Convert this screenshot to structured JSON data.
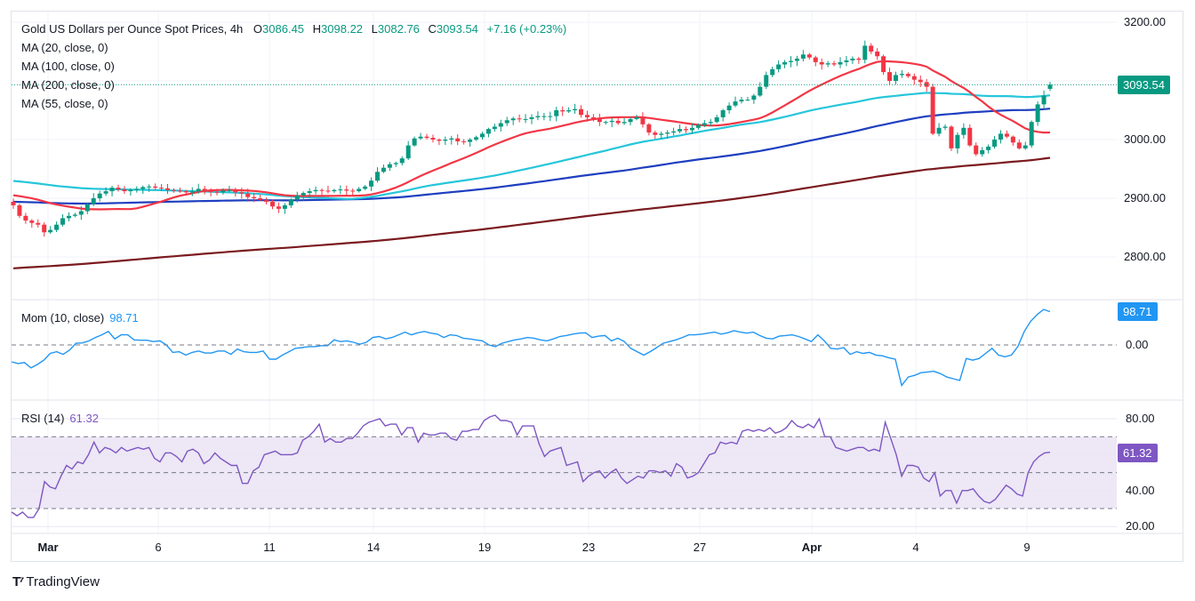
{
  "header": {
    "symbol_title": "Gold US Dollars per Ounce Spot Prices, 4h",
    "open_label": "O",
    "open": "3086.45",
    "high_label": "H",
    "high": "3098.22",
    "low_label": "L",
    "low": "3082.76",
    "close_label": "C",
    "close": "3093.54",
    "change": "+7.16 (+0.23%)"
  },
  "indicators": {
    "ma20": "MA (20, close, 0)",
    "ma100": "MA (100, close, 0)",
    "ma200": "MA (200, close, 0)",
    "ma55": "MA (55, close, 0)",
    "mom_label": "Mom (10, close)",
    "mom_value": "98.71",
    "rsi_label": "RSI (14)",
    "rsi_value": "61.32"
  },
  "price_axis": [
    "3200.00",
    "3000.00",
    "2900.00",
    "2800.00"
  ],
  "price_badge": "3093.54",
  "mom_axis": [
    "0.00"
  ],
  "mom_badge": "98.71",
  "rsi_axis": [
    "80.00",
    "40.00",
    "20.00"
  ],
  "rsi_badge": "61.32",
  "date_axis": [
    {
      "label": "Mar",
      "bold": true
    },
    {
      "label": "6",
      "bold": false
    },
    {
      "label": "11",
      "bold": false
    },
    {
      "label": "14",
      "bold": false
    },
    {
      "label": "19",
      "bold": false
    },
    {
      "label": "23",
      "bold": false
    },
    {
      "label": "27",
      "bold": false
    },
    {
      "label": "Apr",
      "bold": true
    },
    {
      "label": "4",
      "bold": false
    },
    {
      "label": "9",
      "bold": false
    }
  ],
  "brand": "TradingView",
  "colors": {
    "up": "#089981",
    "down": "#f23645",
    "ma20": "#f23645",
    "ma55": "#26c6da",
    "ma100": "#1e3fbf",
    "ma200": "#7b1a1f",
    "mom": "#2196f3",
    "rsi": "#7e57c2",
    "rsi_band": "#ede7f6"
  },
  "chart_data": [
    {
      "type": "candlestick",
      "title": "Gold US Dollars per Ounce Spot Prices, 4h",
      "ylim": [
        2760,
        3220
      ],
      "yticks": [
        2800,
        2900,
        3000,
        3200
      ],
      "x_ticks": [
        "Mar",
        "6",
        "11",
        "14",
        "19",
        "23",
        "27",
        "Apr",
        "4",
        "9"
      ],
      "last": {
        "open": 3086.45,
        "high": 3098.22,
        "low": 3082.76,
        "close": 3093.54
      },
      "close_series": [
        2888,
        2870,
        2862,
        2858,
        2855,
        2842,
        2846,
        2855,
        2866,
        2870,
        2872,
        2878,
        2890,
        2900,
        2908,
        2912,
        2918,
        2915,
        2912,
        2914,
        2916,
        2919,
        2920,
        2918,
        2917,
        2914,
        2913,
        2912,
        2910,
        2912,
        2916,
        2912,
        2911,
        2910,
        2913,
        2914,
        2910,
        2908,
        2902,
        2900,
        2897,
        2894,
        2886,
        2882,
        2888,
        2898,
        2905,
        2909,
        2912,
        2914,
        2913,
        2912,
        2914,
        2915,
        2913,
        2912,
        2916,
        2920,
        2930,
        2945,
        2952,
        2958,
        2960,
        2968,
        2990,
        3002,
        3005,
        3003,
        3000,
        2998,
        3000,
        3002,
        2997,
        2996,
        3000,
        3004,
        3010,
        3018,
        3022,
        3028,
        3033,
        3036,
        3035,
        3035,
        3038,
        3040,
        3040,
        3040,
        3050,
        3048,
        3050,
        3052,
        3042,
        3038,
        3036,
        3030,
        3030,
        3032,
        3028,
        3030,
        3035,
        3038,
        3026,
        3012,
        3008,
        3010,
        3012,
        3014,
        3018,
        3016,
        3020,
        3025,
        3028,
        3030,
        3038,
        3050,
        3058,
        3065,
        3068,
        3068,
        3075,
        3090,
        3110,
        3120,
        3128,
        3132,
        3134,
        3138,
        3145,
        3140,
        3132,
        3128,
        3130,
        3128,
        3132,
        3135,
        3138,
        3136,
        3160,
        3150,
        3142,
        3115,
        3100,
        3110,
        3112,
        3108,
        3102,
        3098,
        3090,
        3010,
        3020,
        3022,
        2985,
        3008,
        3020,
        2990,
        2975,
        2982,
        2988,
        3000,
        3010,
        3005,
        2995,
        2985,
        2990,
        3030,
        3060,
        3075,
        3093.54
      ],
      "ma_series": [
        {
          "name": "MA (20, close, 0)",
          "color": "#f23645"
        },
        {
          "name": "MA (55, close, 0)",
          "color": "#26c6da"
        },
        {
          "name": "MA (100, close, 0)",
          "color": "#1e3fbf"
        },
        {
          "name": "MA (200, close, 0)",
          "color": "#7b1a1f"
        }
      ],
      "ma_last_values": {
        "ma20": 3018,
        "ma55": 3082,
        "ma100": 3055,
        "ma200": 2990
      }
    },
    {
      "type": "line",
      "title": "Mom (10, close)",
      "last_value": 98.71,
      "ylim": [
        -140,
        120
      ],
      "yticks": [
        0
      ],
      "values": [
        -50,
        -55,
        -52,
        -68,
        -58,
        -45,
        -25,
        -20,
        -28,
        -15,
        5,
        6,
        12,
        22,
        30,
        40,
        18,
        30,
        30,
        15,
        14,
        14,
        10,
        12,
        0,
        -22,
        -20,
        -30,
        -22,
        -18,
        -24,
        -24,
        -18,
        -18,
        -28,
        -12,
        -20,
        -22,
        -22,
        -18,
        -42,
        -42,
        -30,
        -20,
        -10,
        -8,
        -5,
        -5,
        -2,
        -2,
        15,
        10,
        12,
        8,
        2,
        8,
        22,
        25,
        18,
        22,
        30,
        38,
        30,
        36,
        40,
        35,
        32,
        22,
        30,
        28,
        20,
        18,
        15,
        12,
        0,
        -5,
        5,
        10,
        15,
        18,
        22,
        20,
        15,
        12,
        18,
        25,
        28,
        32,
        35,
        36,
        22,
        26,
        28,
        12,
        20,
        10,
        -10,
        -20,
        -30,
        -20,
        -8,
        5,
        10,
        15,
        22,
        30,
        30,
        32,
        35,
        38,
        32,
        36,
        42,
        38,
        35,
        38,
        28,
        20,
        18,
        26,
        28,
        30,
        25,
        18,
        10,
        30,
        12,
        -10,
        -12,
        -8,
        -28,
        -20,
        -25,
        -22,
        -30,
        -32,
        -38,
        -42,
        -120,
        -95,
        -90,
        -82,
        -80,
        -78,
        -85,
        -95,
        -100,
        -105,
        -40,
        -45,
        -40,
        -25,
        -10,
        -30,
        -35,
        -30,
        -5,
        40,
        70,
        90,
        105,
        98.71
      ]
    },
    {
      "type": "line",
      "title": "RSI (14)",
      "last_value": 61.32,
      "ylim": [
        18,
        86
      ],
      "yticks": [
        20,
        40,
        80
      ],
      "bands": [
        30,
        50,
        70
      ],
      "values": [
        28,
        26,
        28,
        25,
        25,
        30,
        45,
        42,
        41,
        48,
        54,
        52,
        56,
        55,
        60,
        67,
        61,
        64,
        63,
        61,
        64,
        62,
        63,
        64,
        63,
        64,
        58,
        56,
        61,
        61,
        59,
        56,
        62,
        63,
        61,
        55,
        57,
        61,
        58,
        56,
        54,
        54,
        44,
        44,
        51,
        53,
        60,
        61,
        62,
        60,
        60,
        60,
        61,
        68,
        70,
        73,
        77,
        67,
        69,
        67,
        67,
        69,
        69,
        72,
        76,
        78,
        79,
        80,
        76,
        77,
        77,
        71,
        75,
        75,
        67,
        72,
        71,
        71,
        72,
        72,
        69,
        68,
        73,
        73,
        74,
        74,
        79,
        81,
        82,
        79,
        79,
        78,
        71,
        76,
        76,
        76,
        66,
        59,
        62,
        63,
        64,
        54,
        55,
        56,
        45,
        48,
        50,
        51,
        47,
        50,
        52,
        47,
        44,
        46,
        48,
        47,
        51,
        51,
        50,
        51,
        48,
        55,
        53,
        47,
        48,
        50,
        55,
        60,
        61,
        67,
        66,
        67,
        66,
        73,
        74,
        73,
        74,
        73,
        75,
        72,
        73,
        75,
        79,
        76,
        75,
        77,
        75,
        80,
        70,
        70,
        64,
        63,
        62,
        63,
        64,
        64,
        62,
        63,
        62,
        78,
        69,
        60,
        48,
        54,
        54,
        53,
        47,
        45,
        50,
        37,
        40,
        40,
        33,
        40,
        40,
        41,
        37,
        34,
        33,
        35,
        39,
        43,
        41,
        38,
        37,
        50,
        56,
        59,
        61,
        61.32
      ]
    }
  ]
}
